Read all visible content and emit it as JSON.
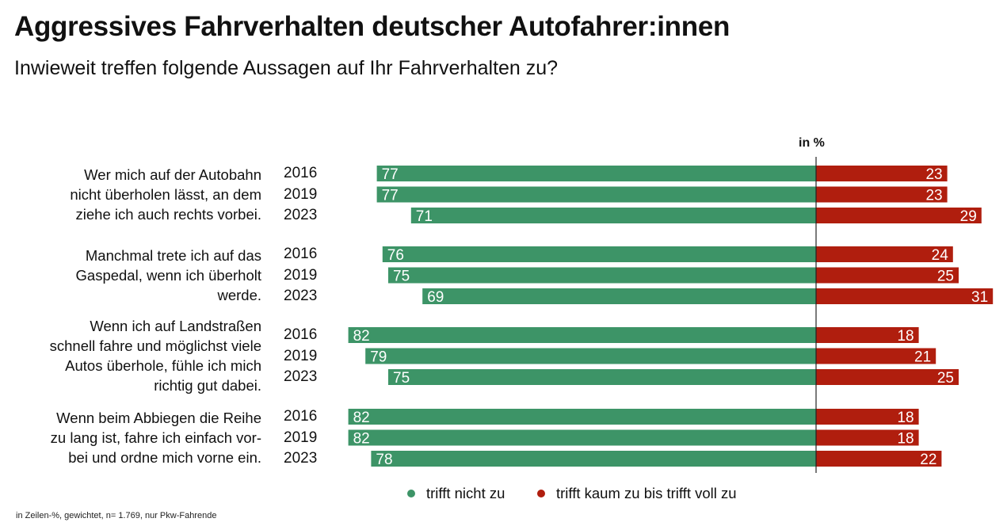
{
  "title": "Aggressives Fahrverhalten deutscher Autofahrer:innen",
  "subtitle": "Inwieweit treffen folgende Aussagen auf Ihr Fahrverhalten zu?",
  "unit_label": "in %",
  "footnote": "in Zeilen-%, gewichtet, n= 1.769, nur Pkw-Fahrende",
  "colors": {
    "negative": "#3d9467",
    "positive": "#b01e0e"
  },
  "chart_data": {
    "type": "bar",
    "orientation": "diverging-horizontal",
    "groups": [
      {
        "statement": "Wer mich auf der Autobahn nicht überholen lässt, an dem ziehe ich auch rechts vorbei.",
        "lines": [
          "Wer mich auf der Autobahn",
          "nicht überholen lässt, an dem",
          "ziehe ich auch rechts vorbei."
        ],
        "years": [
          "2016",
          "2019",
          "2023"
        ],
        "trifft_nicht_zu": [
          77,
          77,
          71
        ],
        "trifft_zu": [
          23,
          23,
          29
        ]
      },
      {
        "statement": "Manchmal trete ich auf das Gaspedal, wenn ich überholt werde.",
        "lines": [
          "Manchmal trete ich auf das",
          "Gaspedal, wenn ich überholt",
          "werde."
        ],
        "years": [
          "2016",
          "2019",
          "2023"
        ],
        "trifft_nicht_zu": [
          76,
          75,
          69
        ],
        "trifft_zu": [
          24,
          25,
          31
        ]
      },
      {
        "statement": "Wenn ich auf Landstraßen schnell fahre und möglichst viele Autos überhole, fühle ich mich richtig gut dabei.",
        "lines": [
          "Wenn ich auf Landstraßen",
          "schnell fahre und möglichst viele",
          "Autos überhole, fühle ich mich",
          "richtig gut dabei."
        ],
        "years": [
          "2016",
          "2019",
          "2023"
        ],
        "trifft_nicht_zu": [
          82,
          79,
          75
        ],
        "trifft_zu": [
          18,
          21,
          25
        ]
      },
      {
        "statement": "Wenn beim Abbiegen die Reihe zu lang ist, fahre ich einfach vorbei und ordne mich vorne ein.",
        "lines": [
          "Wenn beim Abbiegen die Reihe",
          "zu lang ist, fahre ich einfach vor-",
          "bei und ordne mich vorne ein."
        ],
        "years": [
          "2016",
          "2019",
          "2023"
        ],
        "trifft_nicht_zu": [
          82,
          82,
          78
        ],
        "trifft_zu": [
          18,
          18,
          22
        ]
      }
    ],
    "legend": [
      "trifft nicht zu",
      "trifft kaum zu bis trifft voll zu"
    ],
    "legend_position": "bottom"
  }
}
